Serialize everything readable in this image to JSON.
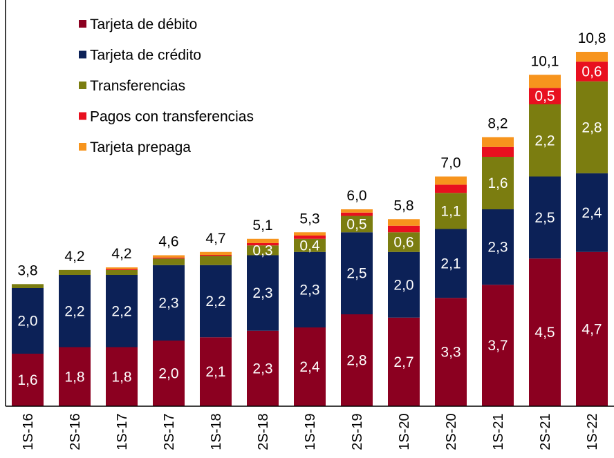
{
  "chart_data": {
    "type": "bar",
    "stacked": true,
    "title": "",
    "xlabel": "",
    "ylabel": "",
    "ylim": [
      0,
      11.2
    ],
    "grid": false,
    "legend_position": "top-left",
    "categories": [
      "1S-16",
      "2S-16",
      "1S-17",
      "2S-17",
      "1S-18",
      "2S-18",
      "1S-19",
      "2S-19",
      "1S-20",
      "2S-20",
      "1S-21",
      "2S-21",
      "1S-22"
    ],
    "series": [
      {
        "name": "Tarjeta de débito",
        "color": "#8b0020",
        "values": [
          1.6,
          1.8,
          1.8,
          2.0,
          2.1,
          2.3,
          2.4,
          2.8,
          2.7,
          3.3,
          3.7,
          4.5,
          4.7
        ],
        "labels": [
          "1,6",
          "1,8",
          "1,8",
          "2,0",
          "2,1",
          "2,3",
          "2,4",
          "2,8",
          "2,7",
          "3,3",
          "3,7",
          "4,5",
          "4,7"
        ]
      },
      {
        "name": "Tarjeta de crédito",
        "color": "#0c2157",
        "values": [
          2.0,
          2.2,
          2.2,
          2.3,
          2.2,
          2.3,
          2.3,
          2.5,
          2.0,
          2.1,
          2.3,
          2.5,
          2.4
        ],
        "labels": [
          "2,0",
          "2,2",
          "2,2",
          "2,3",
          "2,2",
          "2,3",
          "2,3",
          "2,5",
          "2,0",
          "2,1",
          "2,3",
          "2,5",
          "2,4"
        ]
      },
      {
        "name": "Transferencias",
        "color": "#7b7d10",
        "values": [
          0.12,
          0.15,
          0.15,
          0.2,
          0.28,
          0.3,
          0.4,
          0.5,
          0.6,
          1.1,
          1.6,
          2.2,
          2.8
        ],
        "labels": [
          "",
          "",
          "",
          "",
          "",
          "0,3",
          "0,4",
          "0,5",
          "0,6",
          "1,1",
          "1,6",
          "2,2",
          "2,8"
        ]
      },
      {
        "name": "Pagos con transferencias",
        "color": "#e8101f",
        "values": [
          0,
          0,
          0.03,
          0.03,
          0.03,
          0.07,
          0.1,
          0.1,
          0.2,
          0.25,
          0.3,
          0.5,
          0.6
        ],
        "labels": [
          "",
          "",
          "",
          "",
          "",
          "",
          "",
          "",
          "",
          "",
          "",
          "0,5",
          "0,6"
        ]
      },
      {
        "name": "Tarjeta prepaga",
        "color": "#f7941d",
        "values": [
          0,
          0,
          0.05,
          0.07,
          0.09,
          0.13,
          0.1,
          0.1,
          0.2,
          0.25,
          0.3,
          0.4,
          0.3
        ],
        "labels": [
          "",
          "",
          "",
          "",
          "",
          "",
          "",
          "",
          "",
          "",
          "",
          "",
          ""
        ]
      }
    ],
    "totals": [
      "3,8",
      "4,2",
      "4,2",
      "4,6",
      "4,7",
      "5,1",
      "5,3",
      "6,0",
      "5,8",
      "7,0",
      "8,2",
      "10,1",
      "10,8"
    ]
  }
}
